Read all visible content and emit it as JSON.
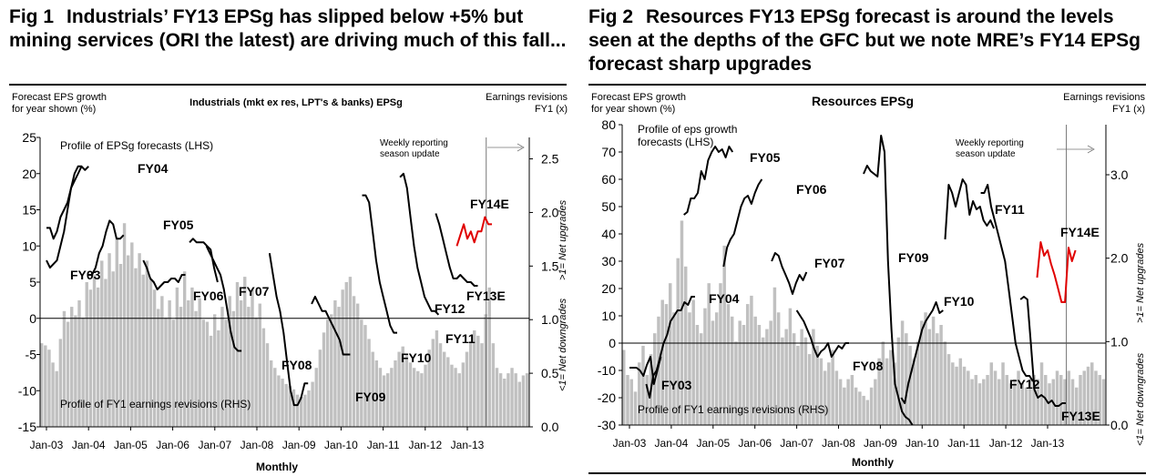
{
  "chart_data": [
    {
      "type": "bar+line",
      "fig_label": "Fig 1",
      "title": "Industrials’ FY13 EPSg has slipped below +5% but mining services (ORI the latest) are driving much of this fall...",
      "subtitle": "Industrials (mkt ex res, LPT's & banks) EPSg",
      "ylabel_left": "Forecast EPS growth for year shown (%)",
      "ylabel_right_top": "Earnings revisions FY1 (x)",
      "ylabel_right_up": ">1= Net upgrades",
      "ylabel_right_down": "<1= Net downgrades",
      "xlabel": "Monthly",
      "x_ticks": [
        "Jan-03",
        "Jan-04",
        "Jan-05",
        "Jan-06",
        "Jan-07",
        "Jan-08",
        "Jan-09",
        "Jan-10",
        "Jan-11",
        "Jan-12",
        "Jan-13"
      ],
      "y_left": {
        "min": -15,
        "max": 25,
        "ticks": [
          "-15",
          "-10",
          "-5",
          "0",
          "5",
          "10",
          "15",
          "20",
          "25"
        ]
      },
      "y_right": {
        "min": 0.0,
        "max": 2.7,
        "ticks": [
          "0.0",
          "0.5",
          "1.0",
          "1.5",
          "2.0",
          "2.5"
        ]
      },
      "annotations": {
        "line_profile": "Profile of EPSg forecasts (LHS)",
        "bar_profile": "Profile of FY1 earnings revisions (RHS)",
        "weekly": "Weekly reporting season update"
      },
      "bars_revisions_rhs": [
        0.78,
        0.76,
        0.72,
        0.6,
        0.52,
        0.82,
        1.08,
        0.98,
        1.12,
        1.04,
        1.18,
        1.02,
        1.35,
        1.28,
        1.42,
        1.3,
        1.55,
        1.38,
        1.62,
        1.45,
        1.75,
        1.52,
        1.9,
        1.6,
        1.72,
        1.48,
        1.62,
        1.42,
        1.55,
        1.38,
        1.28,
        1.1,
        1.22,
        1.02,
        1.18,
        1.0,
        1.3,
        1.12,
        1.45,
        1.18,
        1.3,
        1.08,
        1.2,
        1.0,
        0.98,
        0.85,
        1.05,
        0.9,
        1.12,
        1.0,
        1.22,
        1.08,
        1.35,
        1.18,
        1.4,
        1.12,
        1.28,
        1.02,
        1.15,
        0.92,
        0.78,
        0.62,
        0.55,
        0.48,
        0.45,
        0.4,
        0.38,
        0.35,
        0.3,
        0.28,
        0.3,
        0.34,
        0.42,
        0.55,
        0.72,
        0.88,
        1.0,
        1.05,
        1.18,
        1.12,
        1.28,
        1.35,
        1.4,
        1.22,
        1.15,
        1.0,
        0.95,
        0.82,
        0.7,
        0.62,
        0.55,
        0.48,
        0.5,
        0.55,
        0.62,
        0.7,
        0.75,
        0.68,
        0.6,
        0.55,
        0.52,
        0.5,
        0.58,
        0.72,
        0.82,
        0.9,
        0.78,
        0.7,
        0.65,
        0.58,
        0.55,
        0.5,
        0.6,
        0.7,
        0.8,
        0.9,
        0.85,
        0.78,
        1.05,
        1.3,
        0.78,
        0.55,
        0.5,
        0.45,
        0.5,
        0.55,
        0.5,
        0.42,
        0.48,
        0.5
      ],
      "line_series": [
        {
          "name": "FY03",
          "label": "FY03",
          "color": "#000000",
          "start": 0.0,
          "values": [
            8,
            7,
            7.5,
            8,
            10,
            12,
            15,
            18,
            20,
            21,
            21
          ]
        },
        {
          "name": "FY04",
          "label": "FY04",
          "color": "#000000",
          "start": 0.0,
          "values": [
            12.5,
            12.5,
            11,
            12,
            14,
            15,
            16,
            18,
            19,
            20,
            21,
            20.5,
            21
          ]
        },
        {
          "name": "FY05",
          "label": "FY05",
          "color": "#000000",
          "start": 1.0,
          "values": [
            6,
            6,
            7,
            9,
            10,
            12,
            13.5,
            13,
            11,
            11,
            11.5
          ]
        },
        {
          "name": "FY06",
          "label": "FY06",
          "color": "#000000",
          "start": 2.3,
          "values": [
            8,
            7,
            5.5,
            5,
            4,
            4.5,
            5,
            5,
            5.5,
            5.5,
            5,
            6,
            6
          ]
        },
        {
          "name": "FY07",
          "label": "FY07",
          "color": "#000000",
          "start": 3.4,
          "values": [
            10.5,
            11,
            10.5,
            10.5,
            10.5,
            10,
            9.5,
            7,
            5
          ]
        },
        {
          "name": "FY08",
          "label": "FY08",
          "color": "#000000",
          "start": 3.8,
          "values": [
            10,
            9,
            8,
            7,
            6,
            4,
            1,
            -2,
            -4,
            -4.5,
            -4.5
          ]
        },
        {
          "name": "FY09",
          "label": "FY09",
          "color": "#000000",
          "start": 5.3,
          "values": [
            9,
            6,
            3,
            1,
            -2,
            -6,
            -10,
            -12,
            -12,
            -11,
            -9,
            -9
          ]
        },
        {
          "name": "FY10",
          "label": "FY10",
          "color": "#000000",
          "start": 6.3,
          "values": [
            2,
            3,
            2,
            1,
            1,
            0,
            -1,
            -2,
            -3,
            -5,
            -5,
            -5
          ]
        },
        {
          "name": "FY11",
          "label": "FY11",
          "color": "#000000",
          "start": 7.5,
          "values": [
            17,
            17,
            16,
            12,
            8,
            5,
            3,
            1,
            -1,
            -2,
            -2
          ]
        },
        {
          "name": "FY12",
          "label": "FY12",
          "color": "#000000",
          "start": 8.4,
          "values": [
            19.5,
            20,
            18,
            14,
            10,
            7,
            5,
            3,
            2,
            1,
            1,
            0.5
          ]
        },
        {
          "name": "FY13E",
          "label": "FY13E",
          "color": "#000000",
          "start": 9.25,
          "values": [
            14.5,
            13,
            11,
            9,
            7,
            5.5,
            5.5,
            6,
            5.5,
            5,
            5,
            4.5,
            4.5
          ]
        },
        {
          "name": "FY14E",
          "label": "FY14E",
          "color": "#e00000",
          "start": 9.75,
          "values": [
            10,
            11.5,
            13,
            11,
            12,
            10.5,
            12,
            12,
            14,
            13,
            13
          ]
        }
      ]
    },
    {
      "type": "bar+line",
      "fig_label": "Fig 2",
      "title": "Resources FY13 EPSg forecast is around the levels seen at the depths of the GFC but we note MRE’s FY14 EPSg forecast sharp upgrades",
      "subtitle": "Resources EPSg",
      "ylabel_left": "Forecast EPS growth for year shown (%)",
      "ylabel_right_top": "Earnings revisions FY1 (x)",
      "ylabel_right_up": ">1= Net upgrades",
      "ylabel_right_down": "<1= Net downgrades",
      "xlabel": "Monthly",
      "x_ticks": [
        "Jan-03",
        "Jan-04",
        "Jan-05",
        "Jan-06",
        "Jan-07",
        "Jan-08",
        "Jan-09",
        "Jan-10",
        "Jan-11",
        "Jan-12",
        "Jan-13"
      ],
      "y_left": {
        "min": -30,
        "max": 80,
        "ticks": [
          "-30",
          "-20",
          "-10",
          "0",
          "10",
          "20",
          "30",
          "40",
          "50",
          "60",
          "70",
          "80"
        ]
      },
      "y_right": {
        "min": 0.0,
        "max": 3.6,
        "ticks": [
          "0.0",
          "1.0",
          "2.0",
          "3.0"
        ]
      },
      "annotations": {
        "line_profile": "Profile of eps growth forecasts (LHS)",
        "bar_profile": "Profile of FY1 earnings revisions (RHS)",
        "weekly": "Weekly reporting season update"
      },
      "bars_revisions_rhs": [
        0.9,
        0.6,
        0.55,
        0.4,
        0.75,
        0.95,
        0.6,
        0.85,
        1.1,
        1.3,
        1.5,
        1.45,
        1.7,
        1.35,
        2.0,
        2.45,
        1.9,
        1.35,
        1.5,
        1.2,
        1.1,
        1.4,
        1.7,
        1.25,
        1.35,
        1.7,
        2.15,
        1.45,
        1.3,
        1.0,
        1.25,
        1.2,
        1.45,
        1.55,
        1.3,
        1.2,
        1.05,
        1.15,
        1.25,
        1.65,
        1.35,
        1.05,
        1.15,
        1.4,
        1.1,
        0.95,
        1.15,
        1.05,
        0.85,
        1.15,
        0.95,
        0.8,
        0.65,
        0.75,
        0.9,
        0.65,
        0.55,
        0.45,
        0.55,
        0.6,
        0.45,
        0.4,
        0.35,
        0.3,
        0.45,
        0.55,
        0.8,
        1.0,
        0.8,
        0.9,
        0.75,
        1.05,
        1.25,
        1.1,
        0.95,
        0.8,
        1.0,
        1.25,
        1.35,
        1.15,
        1.3,
        1.1,
        1.2,
        1.0,
        0.85,
        0.75,
        0.7,
        0.8,
        0.7,
        0.65,
        0.55,
        0.6,
        0.5,
        0.55,
        0.6,
        0.75,
        0.65,
        0.55,
        0.75,
        0.6,
        0.5,
        0.55,
        0.65,
        0.5,
        0.45,
        0.55,
        0.6,
        0.55,
        0.75,
        0.6,
        0.5,
        0.55,
        0.65,
        0.6,
        0.55,
        0.65,
        0.55,
        0.45,
        0.6,
        0.65,
        0.7,
        0.75,
        0.65,
        0.6,
        0.55
      ],
      "line_series": [
        {
          "name": "FY03",
          "label": "FY03",
          "color": "#000000",
          "start": 0.0,
          "values": [
            -9,
            -9,
            -9,
            -10,
            -12,
            -8,
            -5,
            -15,
            -10,
            -5
          ]
        },
        {
          "name": "FY04",
          "label": "FY04",
          "color": "#000000",
          "start": 0.4,
          "values": [
            -15,
            -20,
            -12,
            -10,
            -5,
            0,
            3,
            8,
            10,
            12,
            12,
            15,
            14,
            17,
            17
          ]
        },
        {
          "name": "FY05",
          "label": "FY05",
          "color": "#000000",
          "start": 1.3,
          "values": [
            47,
            48,
            53,
            53,
            55,
            63,
            60,
            67,
            70,
            72,
            70,
            71,
            68,
            72,
            70
          ]
        },
        {
          "name": "FY06",
          "label": "FY06",
          "color": "#000000",
          "start": 2.25,
          "values": [
            28,
            35,
            38,
            40,
            45,
            50,
            53,
            54,
            51,
            55,
            58,
            60
          ]
        },
        {
          "name": "FY07",
          "label": "FY07",
          "color": "#000000",
          "start": 3.4,
          "values": [
            30,
            33,
            32,
            28,
            25,
            22,
            18,
            22,
            25,
            23,
            26
          ]
        },
        {
          "name": "FY08",
          "label": "FY08",
          "color": "#000000",
          "start": 4.0,
          "values": [
            12,
            10,
            8,
            5,
            2,
            -2,
            -5,
            -3,
            -2,
            0,
            -5,
            -3,
            -1,
            -2,
            0,
            0
          ]
        },
        {
          "name": "FY09",
          "label": "FY09",
          "color": "#000000",
          "start": 5.6,
          "values": [
            62,
            65,
            63,
            62,
            61,
            76,
            70,
            30,
            5,
            -15,
            -20,
            -25,
            -27,
            -28,
            -30
          ]
        },
        {
          "name": "FY10",
          "label": "FY10",
          "color": "#000000",
          "start": 6.5,
          "values": [
            -20,
            -22,
            -15,
            -10,
            -5,
            0,
            5,
            8,
            10,
            12,
            15,
            11,
            12
          ]
        },
        {
          "name": "FY11",
          "label": "FY11",
          "color": "#000000",
          "start": 7.55,
          "values": [
            38,
            58,
            55,
            50,
            55,
            60,
            58,
            47,
            52,
            49,
            50,
            45,
            43,
            45,
            42
          ]
        },
        {
          "name": "FY12",
          "label": "FY12",
          "color": "#000000",
          "start": 8.4,
          "values": [
            55,
            55,
            58,
            50,
            45,
            40,
            35,
            30,
            20,
            10,
            0,
            -5,
            -10,
            -12,
            -12,
            -14
          ]
        },
        {
          "name": "FY13E",
          "label": "FY13E",
          "color": "#000000",
          "start": 9.35,
          "values": [
            16,
            17,
            16,
            0,
            -17,
            -20,
            -19,
            -20,
            -22,
            -21,
            -23,
            -23,
            -22,
            -22
          ]
        },
        {
          "name": "FY14E",
          "label": "FY14E",
          "color": "#e00000",
          "start": 9.75,
          "values": [
            24,
            37,
            32,
            34,
            29,
            25,
            20,
            15,
            15,
            35,
            30,
            34
          ]
        }
      ]
    }
  ]
}
